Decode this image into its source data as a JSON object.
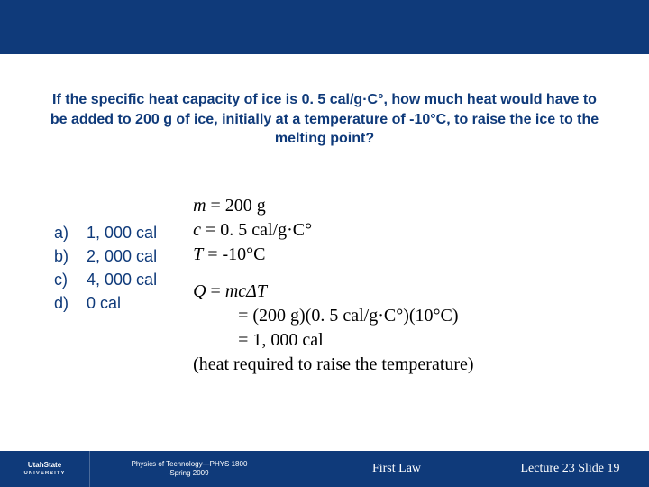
{
  "colors": {
    "primary": "#0f3a7a",
    "background": "#ffffff",
    "text": "#000000",
    "footer_text": "#ffffff"
  },
  "question": "If the specific heat capacity of ice is 0. 5 cal/g·C°, how much heat would have to be added to 200 g of ice, initially at a temperature of -10°C, to raise the ice to the melting point?",
  "choices": {
    "labels": [
      "a)",
      "b)",
      "c)",
      "d)"
    ],
    "values": [
      "1, 000 cal",
      "2, 000 cal",
      "4, 000 cal",
      "0 cal"
    ]
  },
  "solution": {
    "m_label": "m",
    "m_val": " = 200 g",
    "c_label": "c",
    "c_val": " = 0. 5 cal/g·C°",
    "t_label": "T",
    "t_val": " = -10°C",
    "q_label": "Q",
    "q_eq": " = ",
    "mc_label": "mc",
    "dt_label": "ΔT",
    "line2": "= (200 g)(0. 5 cal/g·C°)(10°C)",
    "line3": "= 1, 000 cal",
    "note": "(heat required to raise the temperature)"
  },
  "footer": {
    "logo_top": "UtahState",
    "logo_bottom": "UNIVERSITY",
    "course": "Physics of Technology—PHYS 1800",
    "term": "Spring 2009",
    "topic": "First Law",
    "lecture": "Lecture 23  Slide 19"
  }
}
